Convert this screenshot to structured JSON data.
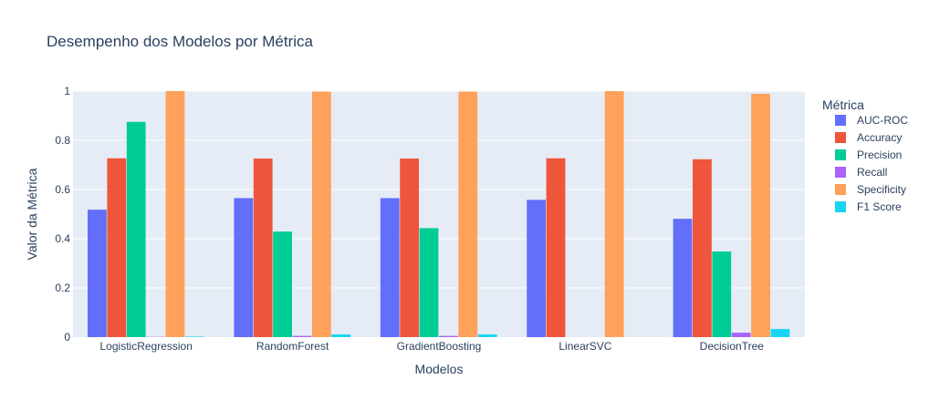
{
  "chart_data": {
    "type": "bar",
    "title": "Desempenho dos Modelos por Métrica",
    "xlabel": "Modelos",
    "ylabel": "Valor da Métrica",
    "ylim": [
      0,
      1
    ],
    "yticks": [
      "0",
      "0.2",
      "0.4",
      "0.6",
      "0.8",
      "1"
    ],
    "grid": true,
    "legend_title": "Métrica",
    "legend_position": "right",
    "categories": [
      "LogisticRegression",
      "RandomForest",
      "GradientBoosting",
      "LinearSVC",
      "DecisionTree"
    ],
    "series": [
      {
        "name": "AUC-ROC",
        "color": "#636efa",
        "values": [
          0.518,
          0.565,
          0.565,
          0.558,
          0.481
        ]
      },
      {
        "name": "Accuracy",
        "color": "#ef553b",
        "values": [
          0.727,
          0.726,
          0.726,
          0.727,
          0.723
        ]
      },
      {
        "name": "Precision",
        "color": "#00cc96",
        "values": [
          0.875,
          0.429,
          0.443,
          0.0,
          0.348
        ]
      },
      {
        "name": "Recall",
        "color": "#ab63fa",
        "values": [
          0.001,
          0.005,
          0.005,
          0.0,
          0.018
        ]
      },
      {
        "name": "Specificity",
        "color": "#ffa15a",
        "values": [
          1.0,
          0.998,
          0.998,
          1.0,
          0.989
        ]
      },
      {
        "name": "F1 Score",
        "color": "#19d3f3",
        "values": [
          0.002,
          0.011,
          0.011,
          0.0,
          0.033
        ]
      }
    ]
  }
}
